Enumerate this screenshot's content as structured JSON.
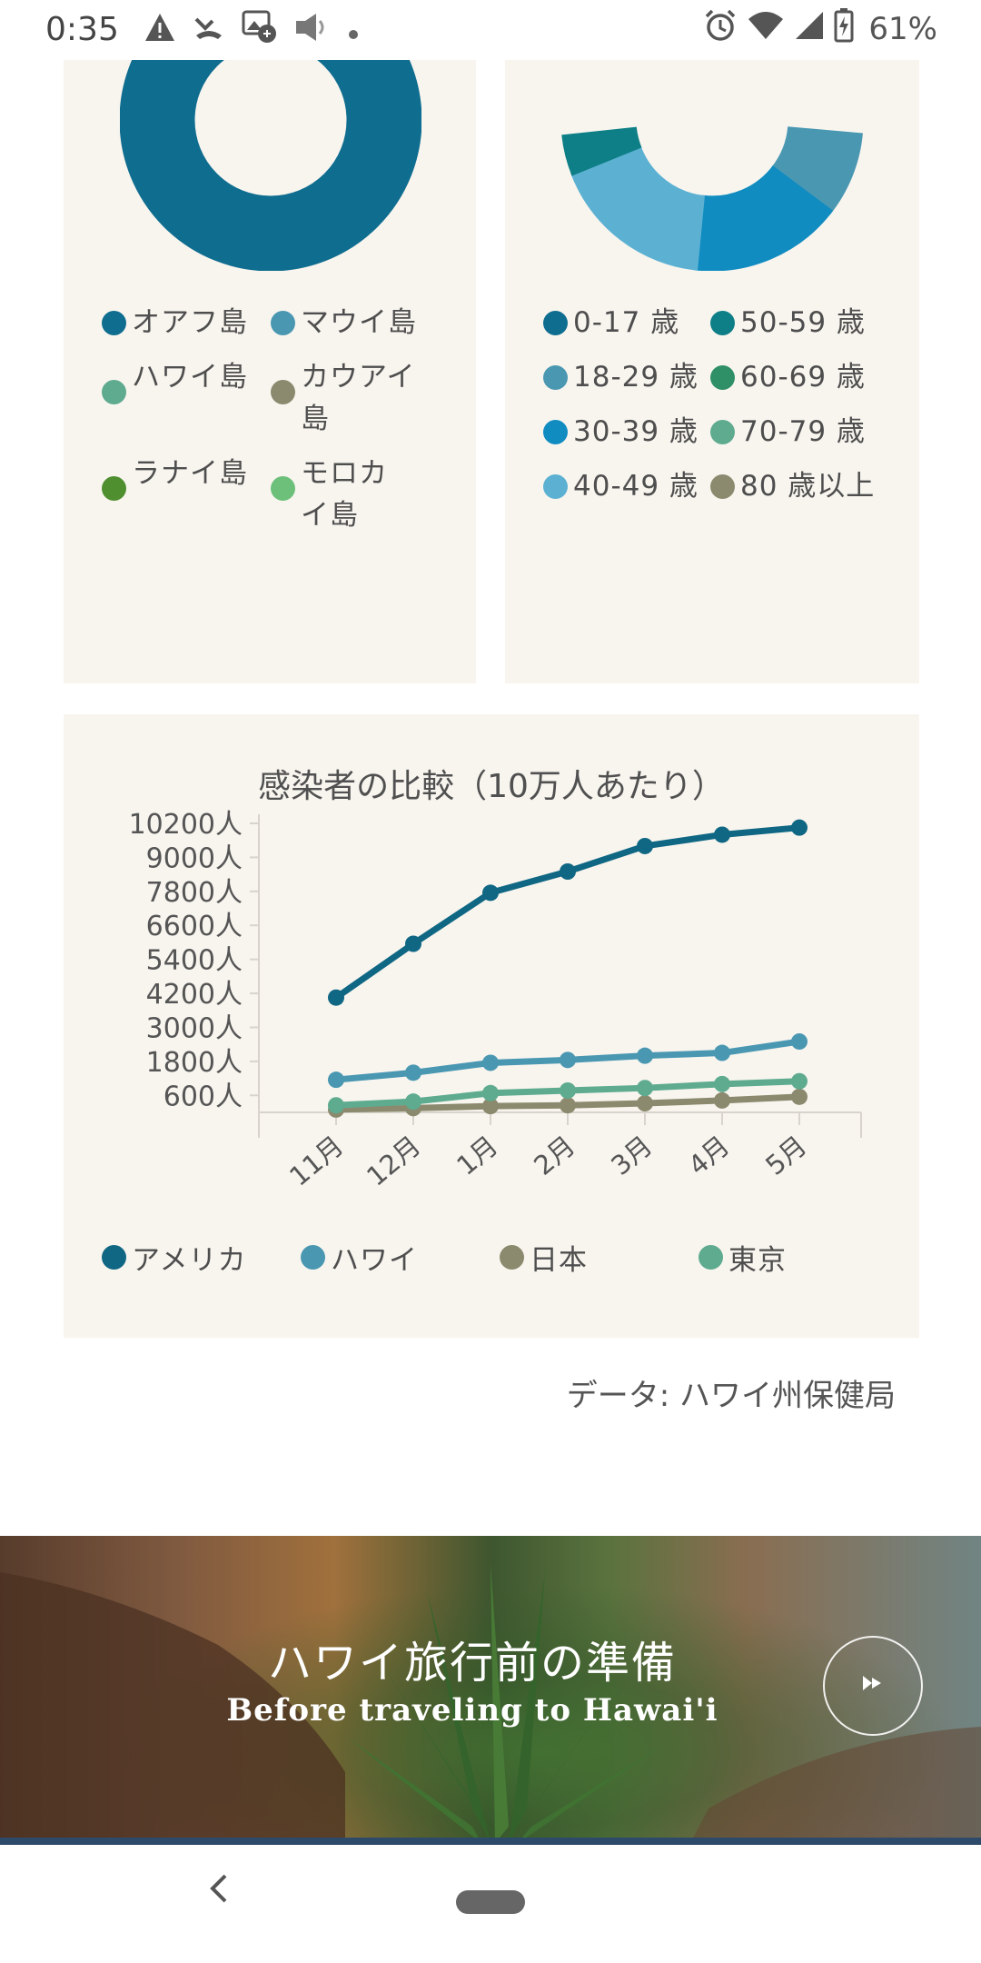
{
  "status_bar": {
    "time": "0:35",
    "left_icons": [
      "warning-icon",
      "missed-call-icon",
      "gallery-icon",
      "speaker-icon",
      "dot-icon"
    ],
    "right_icons": [
      "alarm-icon",
      "wifi-icon",
      "signal-icon",
      "battery-charging-icon"
    ],
    "battery": "61%"
  },
  "island_legend": [
    {
      "label": "オアフ島",
      "color": "#0f6d8f"
    },
    {
      "label": "マウイ島",
      "color": "#4a97b2"
    },
    {
      "label": "ハワイ島",
      "color": "#5eab8f"
    },
    {
      "label": "カウアイ島",
      "color": "#8b8a6e"
    },
    {
      "label": "ラナイ島",
      "color": "#4f8f2f"
    },
    {
      "label": "モロカイ島",
      "color": "#6cc07a"
    }
  ],
  "age_legend": [
    {
      "label": "0-17 歳",
      "color": "#0f6d8f"
    },
    {
      "label": "50-59 歳",
      "color": "#0e7f86"
    },
    {
      "label": "18-29 歳",
      "color": "#4a97b2"
    },
    {
      "label": "60-69 歳",
      "color": "#2f8f66"
    },
    {
      "label": "30-39 歳",
      "color": "#108cc1"
    },
    {
      "label": "70-79 歳",
      "color": "#5eab8f"
    },
    {
      "label": "40-49 歳",
      "color": "#5cb1d2"
    },
    {
      "label": "80 歳以上",
      "color": "#8b8a6e"
    }
  ],
  "chart_data": {
    "type": "line",
    "title": "感染者の比較（10万人あたり）",
    "categories": [
      "11月",
      "12月",
      "1月",
      "2月",
      "3月",
      "4月",
      "5月"
    ],
    "y_ticks": [
      "10200人",
      "9000人",
      "7800人",
      "6600人",
      "5400人",
      "4200人",
      "3000人",
      "1800人",
      "600人"
    ],
    "y_tick_values": [
      10200,
      9000,
      7800,
      6600,
      5400,
      4200,
      3000,
      1800,
      600
    ],
    "ylim": [
      0,
      10200
    ],
    "grid": false,
    "legend_position": "bottom",
    "series": [
      {
        "name": "アメリカ",
        "color": "#0f6783",
        "values": [
          4050,
          5950,
          7750,
          8500,
          9400,
          9800,
          10050
        ]
      },
      {
        "name": "ハワイ",
        "color": "#4a97b2",
        "values": [
          1150,
          1400,
          1750,
          1850,
          2000,
          2100,
          2500
        ]
      },
      {
        "name": "日本",
        "color": "#8b8a6e",
        "values": [
          100,
          150,
          220,
          250,
          320,
          420,
          550
        ]
      },
      {
        "name": "東京",
        "color": "#5eab8f",
        "values": [
          250,
          380,
          680,
          770,
          860,
          1000,
          1100
        ]
      }
    ]
  },
  "source": "データ: ハワイ州保健局",
  "banner": {
    "title": "ハワイ旅行前の準備",
    "subtitle": "Before traveling to Hawai'i",
    "play_icon": "play-icon"
  },
  "nav": {
    "back_icon": "back-chevron-icon",
    "home_icon": "home-pill-icon"
  }
}
